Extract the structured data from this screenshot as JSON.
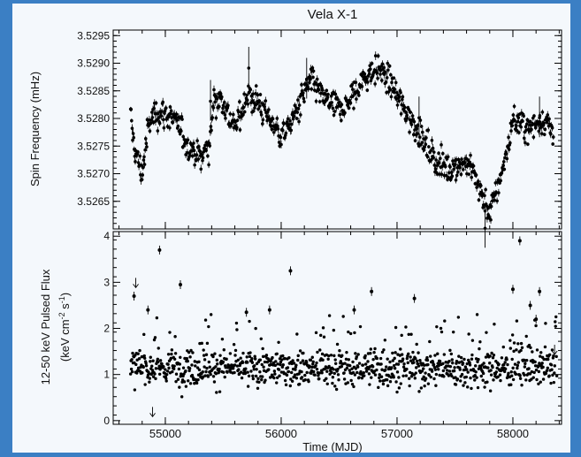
{
  "chart_data": [
    {
      "type": "scatter",
      "title": "Vela X-1",
      "xlabel": "",
      "ylabel": "Spin Frequency (mHz)",
      "xlim": [
        54550,
        58420
      ],
      "ylim": [
        3.526,
        3.5296
      ],
      "x_ticks": [
        55000,
        56000,
        57000,
        58000
      ],
      "x_tick_labels_shown": false,
      "y_ticks": [
        3.5265,
        3.527,
        3.5275,
        3.528,
        3.5285,
        3.529,
        3.5295
      ],
      "y_tick_labels": [
        "3.5265",
        "3.5270",
        "3.5275",
        "3.5280",
        "3.5285",
        "3.5290",
        "3.5295"
      ],
      "series_trend": {
        "x": [
          54700,
          54740,
          54800,
          54850,
          54900,
          55000,
          55100,
          55200,
          55300,
          55380,
          55420,
          55500,
          55600,
          55700,
          55800,
          55900,
          56000,
          56050,
          56150,
          56250,
          56350,
          56450,
          56550,
          56650,
          56750,
          56850,
          56950,
          57050,
          57150,
          57250,
          57350,
          57450,
          57550,
          57650,
          57750,
          57800,
          57850,
          57950,
          58000,
          58050,
          58150,
          58250,
          58350
        ],
        "y": [
          3.528,
          3.5274,
          3.527,
          3.5278,
          3.5281,
          3.5281,
          3.5279,
          3.5275,
          3.5273,
          3.5275,
          3.5284,
          3.5283,
          3.5278,
          3.5284,
          3.5283,
          3.528,
          3.5277,
          3.5278,
          3.5282,
          3.5287,
          3.5284,
          3.5282,
          3.5282,
          3.5285,
          3.5288,
          3.5289,
          3.5286,
          3.5282,
          3.5279,
          3.5275,
          3.5272,
          3.5271,
          3.5272,
          3.5271,
          3.5265,
          3.5263,
          3.5266,
          3.5274,
          3.528,
          3.5279,
          3.5278,
          3.528,
          3.5278
        ]
      },
      "outliers": [
        {
          "x": 55720,
          "y": 3.5292
        },
        {
          "x": 55390,
          "y": 3.5286
        },
        {
          "x": 56220,
          "y": 3.529
        },
        {
          "x": 57190,
          "y": 3.5283
        },
        {
          "x": 57760,
          "y": 3.5263
        },
        {
          "x": 58230,
          "y": 3.5283
        }
      ]
    },
    {
      "type": "scatter",
      "title": "",
      "xlabel": "Time (MJD)",
      "ylabel_lines": [
        "12-50 keV Pulsed Flux",
        "(keV cm^-2 s^-1)"
      ],
      "xlim": [
        54550,
        58420
      ],
      "ylim": [
        -0.08,
        4.1
      ],
      "x_ticks": [
        55000,
        56000,
        57000,
        58000
      ],
      "x_tick_labels": [
        "55000",
        "56000",
        "57000",
        "58000"
      ],
      "y_ticks": [
        0,
        1,
        2,
        3,
        4
      ],
      "y_tick_labels": [
        "0",
        "1",
        "2",
        "3",
        "4"
      ],
      "baseline": 1.15,
      "scatter_band": [
        0.5,
        2.0
      ],
      "high_points": [
        {
          "x": 54950,
          "y": 3.7
        },
        {
          "x": 54730,
          "y": 2.7
        },
        {
          "x": 55130,
          "y": 2.95
        },
        {
          "x": 56080,
          "y": 3.25
        },
        {
          "x": 56780,
          "y": 2.8
        },
        {
          "x": 57150,
          "y": 2.65
        },
        {
          "x": 58000,
          "y": 2.85
        },
        {
          "x": 58060,
          "y": 3.9
        },
        {
          "x": 58230,
          "y": 2.8
        },
        {
          "x": 58150,
          "y": 2.5
        },
        {
          "x": 54850,
          "y": 2.4
        },
        {
          "x": 55700,
          "y": 2.35
        },
        {
          "x": 55900,
          "y": 2.4
        },
        {
          "x": 56630,
          "y": 2.4
        },
        {
          "x": 58200,
          "y": 2.2
        }
      ],
      "upper_limits": [
        {
          "x": 54745,
          "y": 3.0
        },
        {
          "x": 54890,
          "y": 0.2
        },
        {
          "x": 58360,
          "y": 1.55
        }
      ]
    }
  ]
}
